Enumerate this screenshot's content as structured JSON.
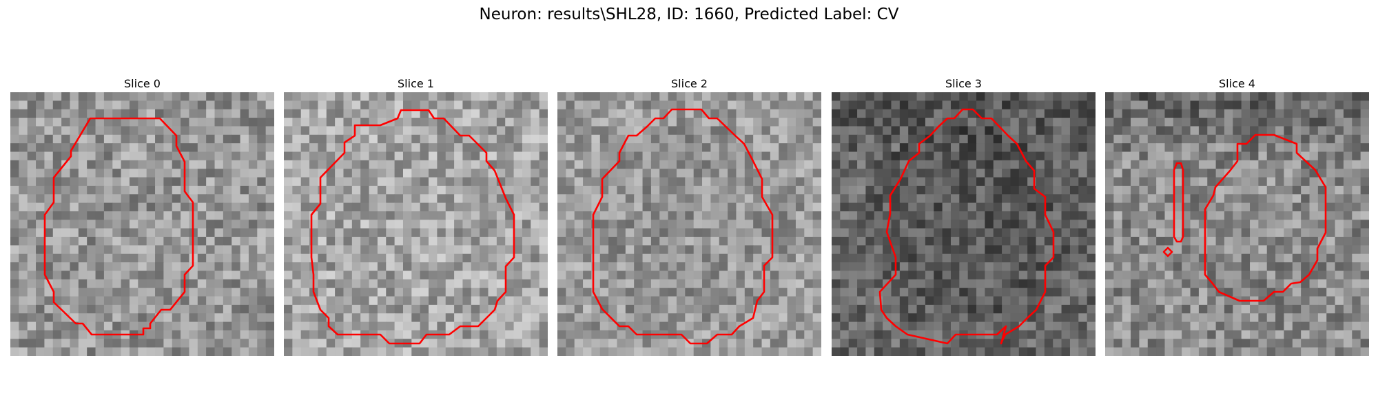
{
  "figure": {
    "title": "Neuron: results\\SHL28, ID: 1660, Predicted Label: CV",
    "contour_color": "#ff0000"
  },
  "panels": [
    {
      "title": "Slice 0",
      "tone": "medium gray",
      "contour": "single octagonal outline",
      "seed": 11
    },
    {
      "title": "Slice 1",
      "tone": "light gray",
      "contour": "single octagonal outline",
      "seed": 23
    },
    {
      "title": "Slice 2",
      "tone": "light gray",
      "contour": "single octagonal outline",
      "seed": 37
    },
    {
      "title": "Slice 3",
      "tone": "dark gray",
      "contour": "single outline with notch on left",
      "seed": 51
    },
    {
      "title": "Slice 4",
      "tone": "mixed dark and light",
      "contour": "main outline plus thin vertical sliver and small diamond",
      "seed": 73
    }
  ]
}
